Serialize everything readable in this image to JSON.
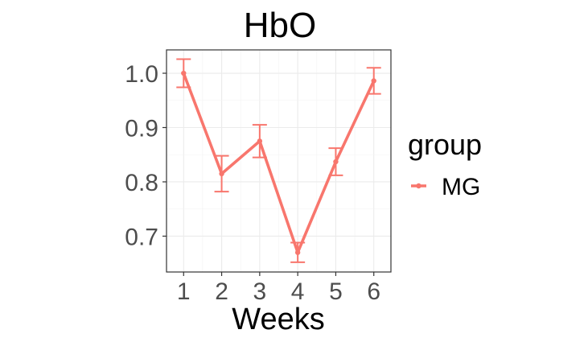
{
  "chart_data": {
    "type": "line",
    "title": "HbO",
    "xlabel": "Weeks",
    "ylabel": "",
    "x": [
      1,
      2,
      3,
      4,
      5,
      6
    ],
    "x_ticks": [
      "1",
      "2",
      "3",
      "4",
      "5",
      "6"
    ],
    "y_ticks": [
      "0.7",
      "0.8",
      "0.9",
      "1.0"
    ],
    "xlim": [
      0.55,
      6.45
    ],
    "ylim": [
      0.634,
      1.043
    ],
    "grid": true,
    "legend": {
      "title": "group",
      "placement": "right"
    },
    "series": [
      {
        "name": "MG",
        "color": "#F8766D",
        "values": [
          1.0,
          0.815,
          0.875,
          0.67,
          0.837,
          0.986
        ],
        "err_low": [
          0.974,
          0.782,
          0.845,
          0.652,
          0.812,
          0.962
        ],
        "err_high": [
          1.026,
          0.848,
          0.905,
          0.688,
          0.862,
          1.01
        ]
      }
    ]
  }
}
